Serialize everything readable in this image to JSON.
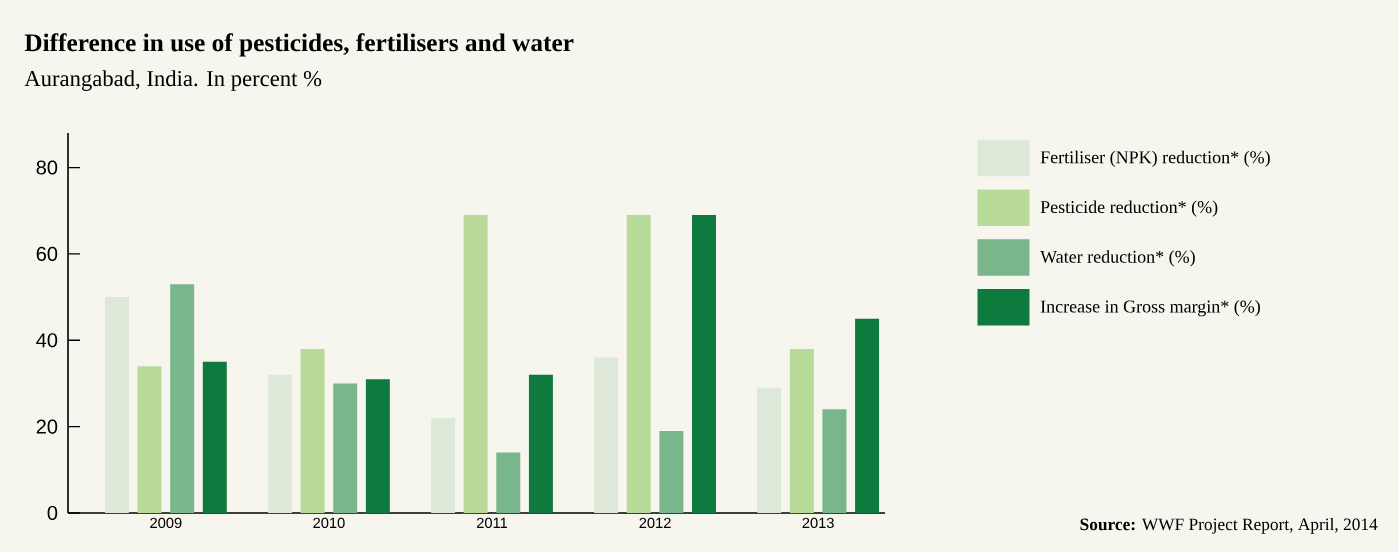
{
  "chart_data": {
    "type": "bar",
    "title": "Difference in use of pesticides, fertilisers and water",
    "subtitle": "Aurangabad, India. In percent %",
    "categories": [
      "2009",
      "2010",
      "2011",
      "2012",
      "2013"
    ],
    "series": [
      {
        "name": "Fertiliser (NPK) reduction* (%)",
        "color": "#dde8d9",
        "values": [
          50,
          32,
          22,
          36,
          29
        ]
      },
      {
        "name": "Pesticide reduction* (%)",
        "color": "#b8db9a",
        "values": [
          34,
          38,
          69,
          69,
          38
        ]
      },
      {
        "name": "Water reduction* (%)",
        "color": "#79b68b",
        "values": [
          53,
          30,
          14,
          19,
          24
        ]
      },
      {
        "name": "Increase in Gross margin* (%)",
        "color": "#0f7a3d",
        "values": [
          35,
          31,
          32,
          69,
          45
        ]
      }
    ],
    "ylim": [
      0,
      88
    ],
    "yticks": [
      0,
      20,
      40,
      60,
      80
    ],
    "legend": "right",
    "annotations": [
      "**Source:** WWF Project Report, April, 2014"
    ]
  }
}
